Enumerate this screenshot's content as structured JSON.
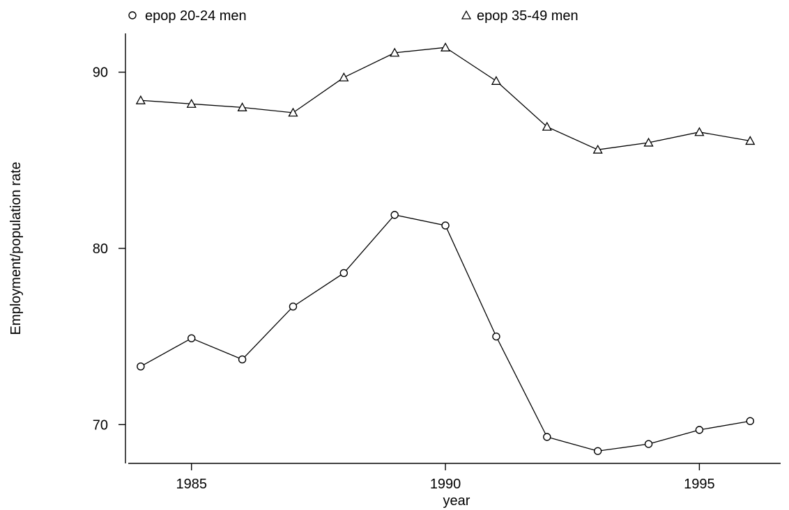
{
  "chart_data": {
    "type": "line",
    "xlabel": "year",
    "ylabel": "Employment/population rate",
    "x": [
      1984,
      1985,
      1986,
      1987,
      1988,
      1989,
      1990,
      1991,
      1992,
      1993,
      1994,
      1995,
      1996
    ],
    "x_ticks": [
      "1985",
      "1990",
      "1995"
    ],
    "y_ticks": [
      "70",
      "80",
      "90"
    ],
    "xlim": [
      1983.7,
      1996.6
    ],
    "ylim": [
      67.8,
      92.2
    ],
    "grid": false,
    "legend_position": "top",
    "series": [
      {
        "name": "epop 20-24 men",
        "marker": "circle",
        "values": [
          73.3,
          74.9,
          73.7,
          76.7,
          78.6,
          81.9,
          81.3,
          75.0,
          69.3,
          68.5,
          68.9,
          69.7,
          70.2
        ]
      },
      {
        "name": "epop 35-49 men",
        "marker": "triangle",
        "values": [
          88.4,
          88.2,
          88.0,
          87.7,
          89.7,
          91.1,
          91.4,
          89.5,
          86.9,
          85.6,
          86.0,
          86.6,
          86.1
        ]
      }
    ],
    "colors": {
      "line": "#000000",
      "background": "#ffffff"
    }
  }
}
